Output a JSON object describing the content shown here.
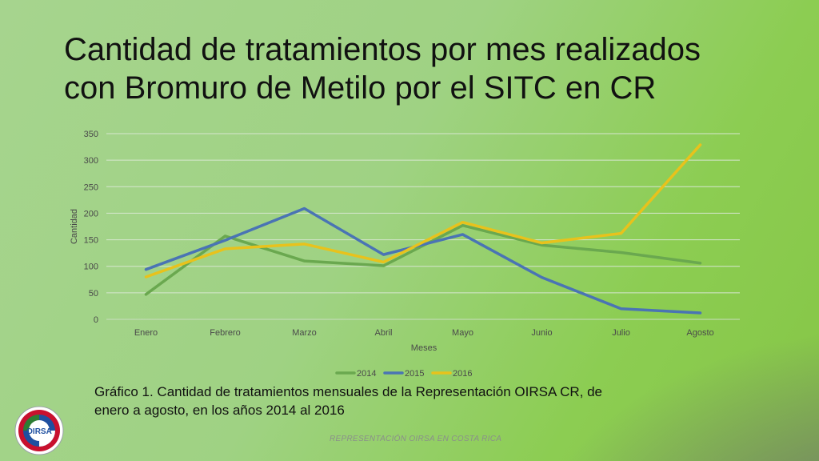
{
  "slide": {
    "title_line1": "Cantidad de tratamientos por mes realizados",
    "title_line2": "con Bromuro de Metilo por el SITC en CR",
    "caption_line1": "Gráfico 1. Cantidad de tratamientos mensuales de la Representación OIRSA CR, de",
    "caption_line2": "enero a agosto, en los años 2014 al 2016",
    "footer": "REPRESENTACIÓN OIRSA EN COSTA RICA",
    "logo_text": "OIRSA"
  },
  "chart_data": {
    "type": "line",
    "title": "",
    "xlabel": "Meses",
    "ylabel": "Cantidad",
    "ylim": [
      0,
      350
    ],
    "yticks": [
      0,
      50,
      100,
      150,
      200,
      250,
      300,
      350
    ],
    "grid": true,
    "legend_position": "bottom",
    "categories": [
      "Enero",
      "Febrero",
      "Marzo",
      "Abril",
      "Mayo",
      "Junio",
      "Julio",
      "Agosto"
    ],
    "series": [
      {
        "name": "2014",
        "color": "#6aa84f",
        "values": [
          47,
          157,
          110,
          101,
          177,
          140,
          126,
          106
        ]
      },
      {
        "name": "2015",
        "color": "#4a74b4",
        "values": [
          94,
          149,
          209,
          122,
          160,
          79,
          20,
          12
        ]
      },
      {
        "name": "2016",
        "color": "#e8c21c",
        "values": [
          80,
          133,
          142,
          108,
          183,
          144,
          162,
          329
        ]
      }
    ]
  }
}
